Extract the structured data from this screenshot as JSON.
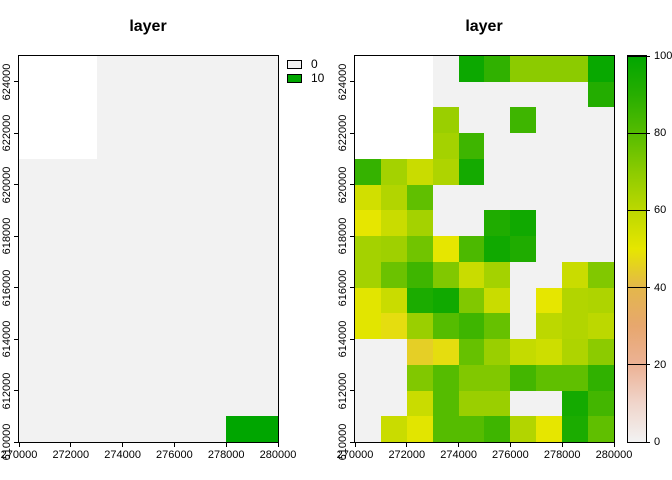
{
  "chart_data": [
    {
      "type": "heatmap",
      "title": "layer",
      "xlabel": "",
      "ylabel": "",
      "xlim": [
        270000,
        280000
      ],
      "ylim": [
        610000,
        625000
      ],
      "x_ticks": [
        270000,
        272000,
        274000,
        276000,
        278000,
        280000
      ],
      "y_ticks": [
        610000,
        612000,
        614000,
        616000,
        618000,
        620000,
        622000,
        624000
      ],
      "nrows": 15,
      "ncols": 10,
      "cell_size_m": 1000,
      "na_color": "#FFFFFF",
      "legend": {
        "type": "discrete",
        "entries": [
          {
            "label": "0",
            "color": "#F2F2F2"
          },
          {
            "label": "10",
            "color": "#00A600"
          }
        ]
      },
      "class_colors": {
        "0": "#F2F2F2",
        "10": "#00A600"
      },
      "values": [
        [
          null,
          null,
          null,
          0,
          0,
          0,
          0,
          0,
          0,
          0
        ],
        [
          null,
          null,
          null,
          0,
          0,
          0,
          0,
          0,
          0,
          0
        ],
        [
          null,
          null,
          null,
          0,
          0,
          0,
          0,
          0,
          0,
          0
        ],
        [
          null,
          null,
          null,
          0,
          0,
          0,
          0,
          0,
          0,
          0
        ],
        [
          0,
          0,
          0,
          0,
          0,
          0,
          0,
          0,
          0,
          0
        ],
        [
          0,
          0,
          0,
          0,
          0,
          0,
          0,
          0,
          0,
          0
        ],
        [
          0,
          0,
          0,
          0,
          0,
          0,
          0,
          0,
          0,
          0
        ],
        [
          0,
          0,
          0,
          0,
          0,
          0,
          0,
          0,
          0,
          0
        ],
        [
          0,
          0,
          0,
          0,
          0,
          0,
          0,
          0,
          0,
          0
        ],
        [
          0,
          0,
          0,
          0,
          0,
          0,
          0,
          0,
          0,
          0
        ],
        [
          0,
          0,
          0,
          0,
          0,
          0,
          0,
          0,
          0,
          0
        ],
        [
          0,
          0,
          0,
          0,
          0,
          0,
          0,
          0,
          0,
          0
        ],
        [
          0,
          0,
          0,
          0,
          0,
          0,
          0,
          0,
          0,
          0
        ],
        [
          0,
          0,
          0,
          0,
          0,
          0,
          0,
          0,
          0,
          0
        ],
        [
          0,
          0,
          0,
          0,
          0,
          0,
          0,
          0,
          10,
          10
        ]
      ]
    },
    {
      "type": "heatmap",
      "title": "layer",
      "xlabel": "",
      "ylabel": "",
      "xlim": [
        270000,
        280000
      ],
      "ylim": [
        610000,
        625000
      ],
      "x_ticks": [
        270000,
        272000,
        274000,
        276000,
        278000,
        280000
      ],
      "y_ticks": [
        610000,
        612000,
        614000,
        616000,
        618000,
        620000,
        622000,
        624000
      ],
      "nrows": 15,
      "ncols": 10,
      "cell_size_m": 1000,
      "na_color": "#FFFFFF",
      "legend": {
        "type": "colorbar",
        "ticks": [
          0,
          20,
          40,
          60,
          80,
          100
        ],
        "range": [
          0,
          100
        ],
        "palette_stops": [
          {
            "v": 0,
            "color": "#F2F2F2"
          },
          {
            "v": 10,
            "color": "#F0D5CB"
          },
          {
            "v": 20,
            "color": "#ECB295"
          },
          {
            "v": 30,
            "color": "#E7A76E"
          },
          {
            "v": 40,
            "color": "#E3B74B"
          },
          {
            "v": 50,
            "color": "#E6E600"
          },
          {
            "v": 60,
            "color": "#BCD800"
          },
          {
            "v": 70,
            "color": "#8CCB00"
          },
          {
            "v": 80,
            "color": "#55BC00"
          },
          {
            "v": 90,
            "color": "#27AE00"
          },
          {
            "v": 100,
            "color": "#00A600"
          }
        ]
      },
      "values": [
        [
          null,
          null,
          null,
          0,
          97,
          88,
          70,
          70,
          70,
          98
        ],
        [
          null,
          null,
          null,
          0,
          0,
          0,
          0,
          0,
          0,
          91
        ],
        [
          null,
          null,
          null,
          67,
          0,
          0,
          85,
          0,
          0,
          0
        ],
        [
          null,
          null,
          null,
          65,
          85,
          0,
          0,
          0,
          0,
          0
        ],
        [
          87,
          65,
          57,
          63,
          95,
          0,
          0,
          0,
          0,
          0
        ],
        [
          55,
          62,
          78,
          0,
          0,
          0,
          0,
          0,
          0,
          0
        ],
        [
          50,
          57,
          65,
          0,
          0,
          92,
          96,
          0,
          0,
          0
        ],
        [
          65,
          66,
          75,
          50,
          82,
          96,
          92,
          0,
          0,
          0
        ],
        [
          65,
          76,
          85,
          72,
          57,
          65,
          0,
          0,
          57,
          72
        ],
        [
          51,
          57,
          93,
          96,
          72,
          57,
          0,
          50,
          62,
          63
        ],
        [
          51,
          48,
          67,
          80,
          85,
          77,
          0,
          60,
          62,
          60
        ],
        [
          0,
          0,
          45,
          48,
          77,
          67,
          58,
          56,
          63,
          70
        ],
        [
          0,
          0,
          72,
          80,
          72,
          72,
          84,
          78,
          78,
          88
        ],
        [
          0,
          0,
          57,
          80,
          67,
          67,
          0,
          0,
          95,
          84
        ],
        [
          0,
          57,
          51,
          80,
          80,
          85,
          62,
          50,
          93,
          78
        ]
      ]
    }
  ]
}
